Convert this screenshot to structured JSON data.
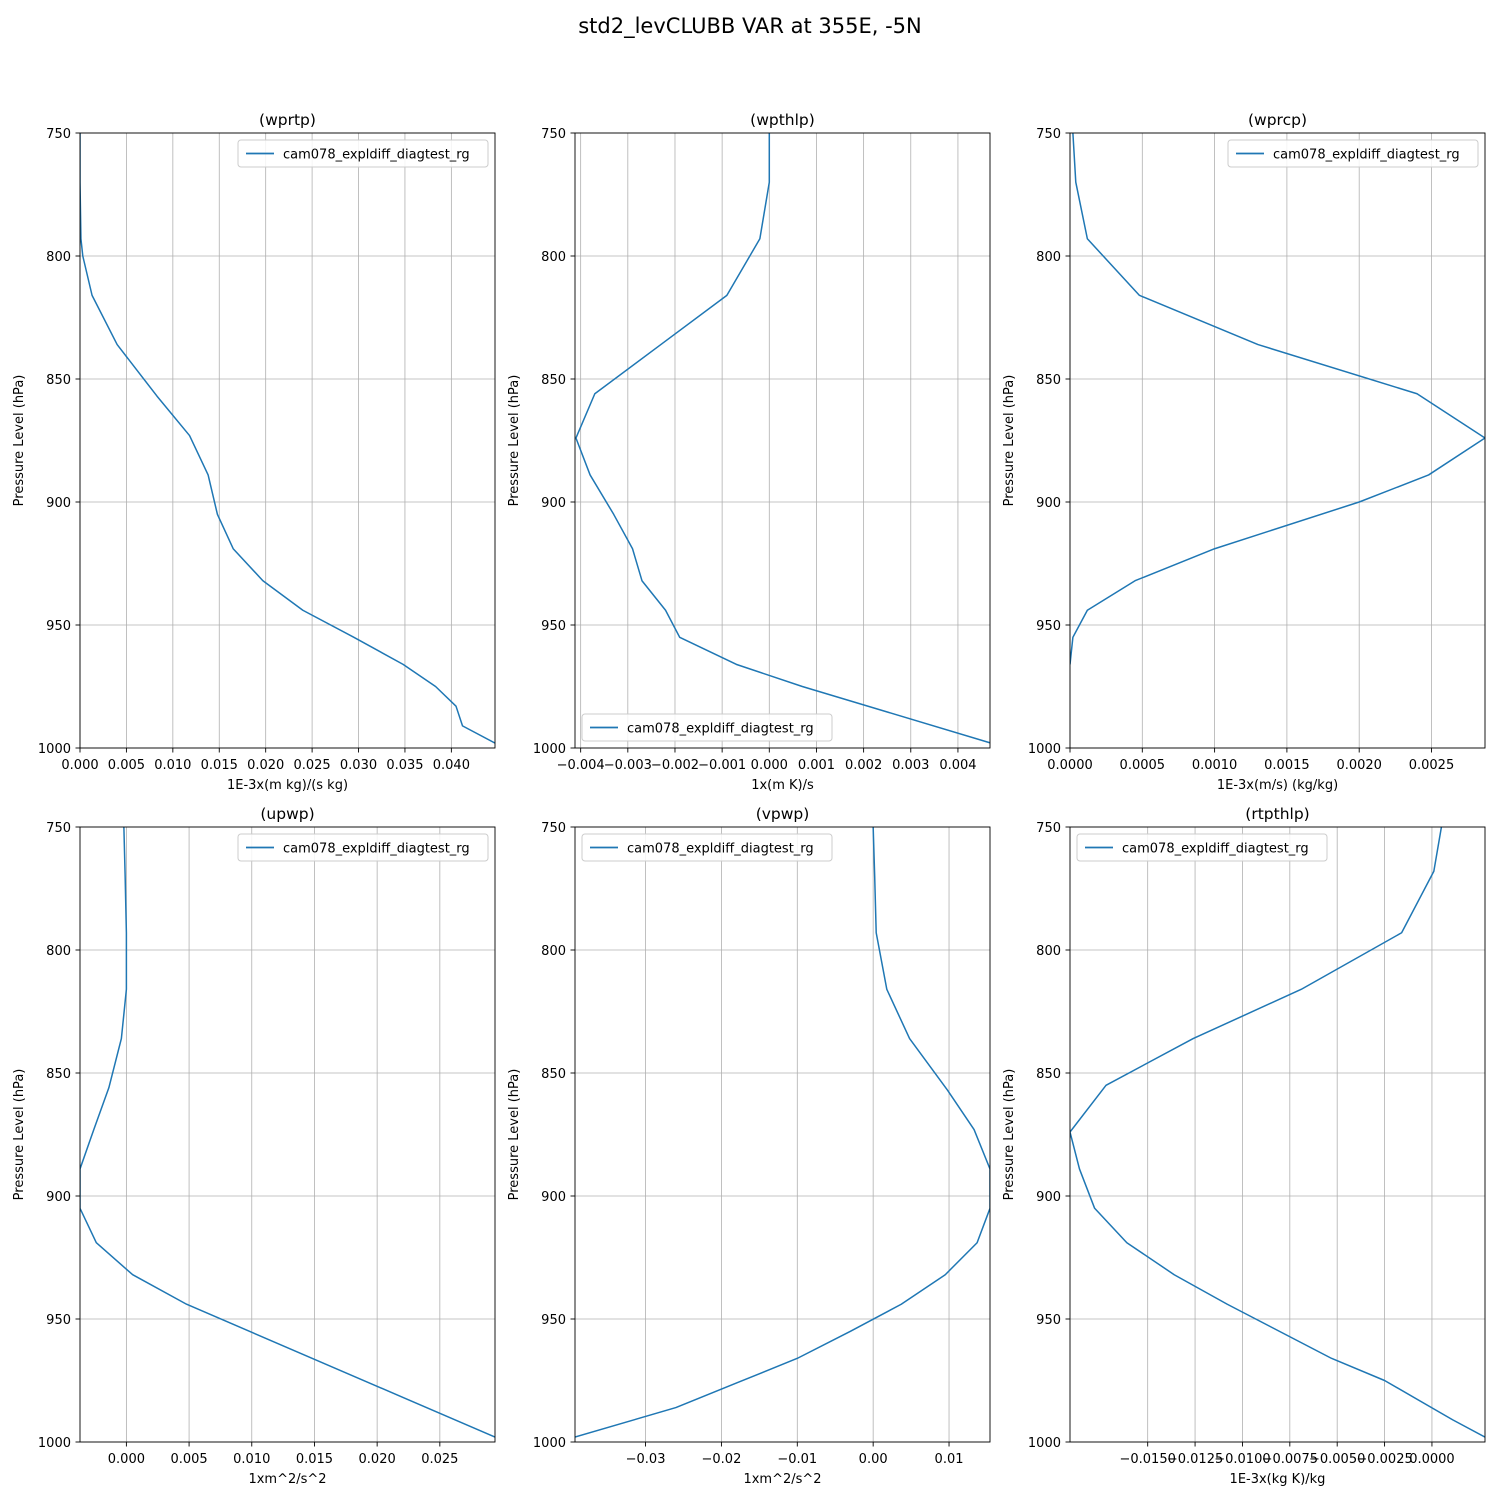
{
  "figure": {
    "title": "std2_levCLUBB VAR at 355E, -5N"
  },
  "chart_data": [
    {
      "type": "line",
      "title": "(wprtp)",
      "xlabel": "1E-3x(m kg)/(s kg)",
      "ylabel": "Pressure Level (hPa)",
      "xlim": [
        0.0,
        0.0447
      ],
      "ylim": [
        1000,
        750
      ],
      "xticks": [
        0.0,
        0.005,
        0.01,
        0.015,
        0.02,
        0.025,
        0.03,
        0.035,
        0.04
      ],
      "xtick_labels": [
        "0.000",
        "0.005",
        "0.010",
        "0.015",
        "0.020",
        "0.025",
        "0.030",
        "0.035",
        "0.040"
      ],
      "yticks": [
        750,
        800,
        850,
        900,
        950,
        1000
      ],
      "ytick_labels": [
        "750",
        "800",
        "850",
        "900",
        "950",
        "1000"
      ],
      "grid": true,
      "legend": "upper right",
      "series": [
        {
          "name": "cam078_expldiff_diagtest_rg",
          "color": "#1f77b4",
          "x": [
            0.0,
            0.0,
            0.0001,
            0.0003,
            0.0013,
            0.004,
            0.0083,
            0.0118,
            0.0138,
            0.0148,
            0.0165,
            0.0197,
            0.024,
            0.0295,
            0.0348,
            0.0383,
            0.0405,
            0.0412,
            0.0447
          ],
          "y": [
            750,
            770,
            793,
            800,
            816,
            836,
            857,
            873,
            889,
            905,
            919,
            932,
            944,
            955,
            966,
            975,
            983,
            991,
            998
          ]
        }
      ]
    },
    {
      "type": "line",
      "title": "(wpthlp)",
      "xlabel": "1x(m K)/s",
      "ylabel": "Pressure Level (hPa)",
      "xlim": [
        -0.00412,
        0.00468
      ],
      "ylim": [
        1000,
        750
      ],
      "xticks": [
        -0.004,
        -0.003,
        -0.002,
        -0.001,
        0.0,
        0.001,
        0.002,
        0.003,
        0.004
      ],
      "xtick_labels": [
        "−0.004",
        "−0.003",
        "−0.002",
        "−0.001",
        "0.000",
        "0.001",
        "0.002",
        "0.003",
        "0.004"
      ],
      "yticks": [
        750,
        800,
        850,
        900,
        950,
        1000
      ],
      "ytick_labels": [
        "750",
        "800",
        "850",
        "900",
        "950",
        "1000"
      ],
      "grid": true,
      "legend": "lower left",
      "series": [
        {
          "name": "cam078_expldiff_diagtest_rg",
          "color": "#1f77b4",
          "x": [
            0.0,
            0.0,
            -0.0002,
            -0.0009,
            -0.0023,
            -0.0037,
            -0.0041,
            -0.0038,
            -0.0033,
            -0.0029,
            -0.0027,
            -0.0022,
            -0.0019,
            -0.0007,
            0.0007,
            0.0047
          ],
          "y": [
            750,
            770,
            793,
            816,
            836,
            856,
            874,
            889,
            905,
            919,
            932,
            944,
            955,
            966,
            975,
            998
          ]
        }
      ]
    },
    {
      "type": "line",
      "title": "(wprcp)",
      "xlabel": "1E-3x(m/s) (kg/kg)",
      "ylabel": "Pressure Level (hPa)",
      "xlim": [
        0.0,
        0.00287
      ],
      "ylim": [
        1000,
        750
      ],
      "xticks": [
        0.0,
        0.0005,
        0.001,
        0.0015,
        0.002,
        0.0025
      ],
      "xtick_labels": [
        "0.0000",
        "0.0005",
        "0.0010",
        "0.0015",
        "0.0020",
        "0.0025"
      ],
      "yticks": [
        750,
        800,
        850,
        900,
        950,
        1000
      ],
      "ytick_labels": [
        "750",
        "800",
        "850",
        "900",
        "950",
        "1000"
      ],
      "grid": true,
      "legend": "upper right",
      "series": [
        {
          "name": "cam078_expldiff_diagtest_rg",
          "color": "#1f77b4",
          "x": [
            2e-05,
            4e-05,
            0.00012,
            0.00048,
            0.0013,
            0.0024,
            0.00287,
            0.00248,
            0.002,
            0.001,
            0.00045,
            0.00012,
            2e-05,
            0.0
          ],
          "y": [
            750,
            770,
            793,
            816,
            836,
            856,
            874,
            889,
            900,
            919,
            932,
            944,
            955,
            966
          ]
        }
      ]
    },
    {
      "type": "line",
      "title": "(upwp)",
      "xlabel": "1xm^2/s^2",
      "ylabel": "Pressure Level (hPa)",
      "xlim": [
        -0.0037,
        0.0294
      ],
      "ylim": [
        1000,
        750
      ],
      "xticks": [
        0.0,
        0.005,
        0.01,
        0.015,
        0.02,
        0.025
      ],
      "xtick_labels": [
        "0.000",
        "0.005",
        "0.010",
        "0.015",
        "0.020",
        "0.025"
      ],
      "yticks": [
        750,
        800,
        850,
        900,
        950,
        1000
      ],
      "ytick_labels": [
        "750",
        "800",
        "850",
        "900",
        "950",
        "1000"
      ],
      "grid": true,
      "legend": "upper right",
      "series": [
        {
          "name": "cam078_expldiff_diagtest_rg",
          "color": "#1f77b4",
          "x": [
            -0.0002,
            -0.0001,
            0.0,
            0.0,
            -0.0004,
            -0.0014,
            -0.0026,
            -0.0037,
            -0.0037,
            -0.0024,
            0.0005,
            0.0048,
            0.0294
          ],
          "y": [
            750,
            770,
            793,
            816,
            836,
            856,
            873,
            889,
            905,
            919,
            932,
            944,
            998
          ]
        }
      ]
    },
    {
      "type": "line",
      "title": "(vpwp)",
      "xlabel": "1xm^2/s^2",
      "ylabel": "Pressure Level (hPa)",
      "xlim": [
        -0.0393,
        0.0154
      ],
      "ylim": [
        1000,
        750
      ],
      "xticks": [
        -0.03,
        -0.02,
        -0.01,
        0.0,
        0.01
      ],
      "xtick_labels": [
        "−0.03",
        "−0.02",
        "−0.01",
        "0.00",
        "0.01"
      ],
      "yticks": [
        750,
        800,
        850,
        900,
        950,
        1000
      ],
      "ytick_labels": [
        "750",
        "800",
        "850",
        "900",
        "950",
        "1000"
      ],
      "grid": true,
      "legend": "upper left",
      "series": [
        {
          "name": "cam078_expldiff_diagtest_rg",
          "color": "#1f77b4",
          "x": [
            0.0,
            0.0002,
            0.0004,
            0.0018,
            0.0048,
            0.0098,
            0.0133,
            0.0154,
            0.0154,
            0.0137,
            0.0095,
            0.0037,
            -0.003,
            -0.01,
            -0.018,
            -0.026,
            -0.0393
          ],
          "y": [
            750,
            770,
            793,
            816,
            836,
            857,
            873,
            889,
            905,
            919,
            932,
            944,
            955,
            966,
            976,
            986,
            998
          ]
        }
      ]
    },
    {
      "type": "line",
      "title": "(rtpthlp)",
      "xlabel": "1E-3x(kg K)/kg",
      "ylabel": "Pressure Level (hPa)",
      "xlim": [
        -0.0191,
        0.0028
      ],
      "ylim": [
        1000,
        750
      ],
      "xticks": [
        -0.015,
        -0.0125,
        -0.01,
        -0.0075,
        -0.005,
        -0.0025,
        0.0
      ],
      "xtick_labels": [
        "−0.0150",
        "−0.0125",
        "−0.0100",
        "−0.0075",
        "−0.0050",
        "−0.0025",
        "0.0000"
      ],
      "yticks": [
        750,
        800,
        850,
        900,
        950,
        1000
      ],
      "ytick_labels": [
        "750",
        "800",
        "850",
        "900",
        "950",
        "1000"
      ],
      "grid": true,
      "legend": "upper left",
      "series": [
        {
          "name": "cam078_expldiff_diagtest_rg",
          "color": "#1f77b4",
          "x": [
            0.0005,
            0.0001,
            -0.0016,
            -0.0069,
            -0.0126,
            -0.0172,
            -0.0191,
            -0.0186,
            -0.0178,
            -0.0161,
            -0.0136,
            -0.0108,
            -0.0053,
            -0.0025,
            0.0011,
            0.0028
          ],
          "y": [
            750,
            768,
            793,
            816,
            836,
            855,
            874,
            889,
            905,
            919,
            932,
            944,
            966,
            975,
            991,
            998
          ]
        }
      ]
    }
  ]
}
